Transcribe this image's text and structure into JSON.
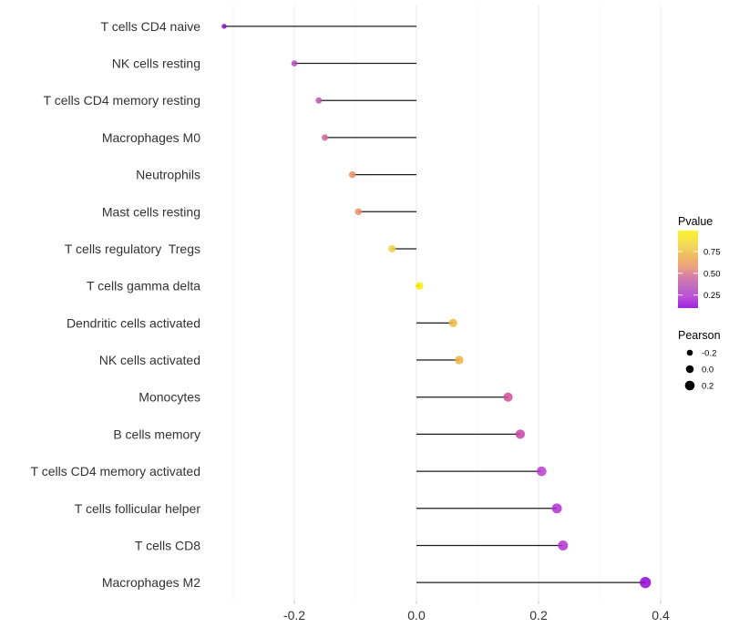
{
  "chart_data": {
    "type": "scatter",
    "variant": "horizontal-lollipop",
    "title": "",
    "xlabel": "",
    "ylabel": "",
    "xlim": [
      -0.33,
      0.5
    ],
    "grid": "vertical major+minor, light gray on white, no panel border",
    "x_major_ticks": [
      {
        "value": -0.2,
        "label": "-0.2"
      },
      {
        "value": 0.0,
        "label": "0.0"
      },
      {
        "value": 0.2,
        "label": "0.2"
      },
      {
        "value": 0.4,
        "label": "0.4"
      }
    ],
    "x_minor_gridlines": [
      -0.3,
      -0.1,
      0.1,
      0.3
    ],
    "point_alpha": 0.85,
    "points": [
      {
        "label": "T cells CD4 naive",
        "pearson": -0.315,
        "pvalue": 0.13,
        "color": "#8A0BCD"
      },
      {
        "label": "NK cells resting",
        "pearson": -0.2,
        "pvalue": 0.33,
        "color": "#B249BC"
      },
      {
        "label": "T cells CD4 memory resting",
        "pearson": -0.16,
        "pvalue": 0.4,
        "color": "#BC59AD"
      },
      {
        "label": "Macrophages M0",
        "pearson": -0.15,
        "pvalue": 0.46,
        "color": "#CE659A"
      },
      {
        "label": "Neutrophils",
        "pearson": -0.105,
        "pvalue": 0.58,
        "color": "#E99169"
      },
      {
        "label": "Mast cells resting",
        "pearson": -0.095,
        "pvalue": 0.58,
        "color": "#E99066"
      },
      {
        "label": "T cells regulatory  Tregs",
        "pearson": -0.04,
        "pvalue": 0.8,
        "color": "#F1D042"
      },
      {
        "label": "T cells gamma delta",
        "pearson": 0.005,
        "pvalue": 0.97,
        "color": "#F8F006"
      },
      {
        "label": "Dendritic cells activated",
        "pearson": 0.06,
        "pvalue": 0.73,
        "color": "#EEB840"
      },
      {
        "label": "NK cells activated",
        "pearson": 0.07,
        "pvalue": 0.72,
        "color": "#EEB342"
      },
      {
        "label": "Monocytes",
        "pearson": 0.15,
        "pvalue": 0.43,
        "color": "#D04C98"
      },
      {
        "label": "B cells memory",
        "pearson": 0.17,
        "pvalue": 0.38,
        "color": "#C743A7"
      },
      {
        "label": "T cells CD4 memory activated",
        "pearson": 0.205,
        "pvalue": 0.3,
        "color": "#BA3ECC"
      },
      {
        "label": "T cells follicular helper",
        "pearson": 0.23,
        "pvalue": 0.24,
        "color": "#B02FD4"
      },
      {
        "label": "T cells CD8",
        "pearson": 0.24,
        "pvalue": 0.25,
        "color": "#B331D1"
      },
      {
        "label": "Macrophages M2",
        "pearson": 0.375,
        "pvalue": 0.11,
        "color": "#9007D3"
      }
    ],
    "legend_pvalue": {
      "title": "Pvalue",
      "tick_labels": [
        "0.75",
        "0.50",
        "0.25"
      ],
      "tick_values": [
        0.75,
        0.5,
        0.25
      ],
      "range_bottom_to_top": [
        0.1,
        0.99
      ],
      "gradient_top_to_bottom": [
        {
          "offset": 0.0,
          "color": "#FAF42C"
        },
        {
          "offset": 0.2,
          "color": "#F3D75E"
        },
        {
          "offset": 0.31,
          "color": "#F0BE5E"
        },
        {
          "offset": 0.47,
          "color": "#ECA17F"
        },
        {
          "offset": 0.6,
          "color": "#D57CA9"
        },
        {
          "offset": 0.68,
          "color": "#C672B9"
        },
        {
          "offset": 0.76,
          "color": "#BD64C6"
        },
        {
          "offset": 0.86,
          "color": "#BC4EDA"
        },
        {
          "offset": 1.0,
          "color": "#9D22DC"
        }
      ]
    },
    "legend_pearson": {
      "title": "Pearson",
      "items": [
        {
          "label": "-0.2",
          "value": -0.2
        },
        {
          "label": "0.0",
          "value": 0.0
        },
        {
          "label": "0.2",
          "value": 0.2
        }
      ],
      "dot_color": "#000000"
    }
  },
  "colors": {
    "background": "#FFFFFF",
    "grid_major": "#E8E8E8",
    "grid_minor": "#F4F4F4",
    "stem": "#1C1C1C",
    "axis_text": "#323232",
    "tick_mark": "#C9C9C9",
    "legend_text": "#000000"
  }
}
